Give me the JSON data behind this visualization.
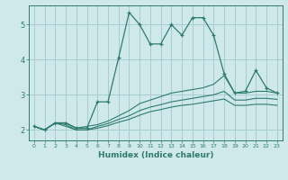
{
  "xlabel": "Humidex (Indice chaleur)",
  "bg_color": "#cfe9eb",
  "grid_color": "#a0c8cc",
  "line_color": "#2e7b6e",
  "xlim": [
    -0.5,
    23.5
  ],
  "ylim": [
    1.7,
    5.55
  ],
  "xticks": [
    0,
    1,
    2,
    3,
    4,
    5,
    6,
    7,
    8,
    9,
    10,
    11,
    12,
    13,
    14,
    15,
    16,
    17,
    18,
    19,
    20,
    21,
    22,
    23
  ],
  "yticks": [
    2,
    3,
    4,
    5
  ],
  "line1_x": [
    0,
    1,
    2,
    3,
    4,
    5,
    6,
    7,
    8,
    9,
    10,
    11,
    12,
    13,
    14,
    15,
    16,
    17,
    18,
    19,
    20,
    21,
    22,
    23
  ],
  "line1_y": [
    2.1,
    2.0,
    2.2,
    2.2,
    2.05,
    2.05,
    2.8,
    2.8,
    4.05,
    5.35,
    5.0,
    4.45,
    4.45,
    5.0,
    4.7,
    5.2,
    5.2,
    4.7,
    3.6,
    3.05,
    3.1,
    3.7,
    3.2,
    3.05
  ],
  "line2_x": [
    0,
    1,
    2,
    3,
    4,
    5,
    6,
    7,
    8,
    9,
    10,
    11,
    12,
    13,
    14,
    15,
    16,
    17,
    18,
    19,
    20,
    21,
    22,
    23
  ],
  "line2_y": [
    2.1,
    2.0,
    2.2,
    2.2,
    2.05,
    2.1,
    2.15,
    2.25,
    2.4,
    2.55,
    2.75,
    2.85,
    2.95,
    3.05,
    3.1,
    3.15,
    3.2,
    3.3,
    3.55,
    3.05,
    3.05,
    3.1,
    3.1,
    3.05
  ],
  "line3_x": [
    0,
    1,
    2,
    3,
    4,
    5,
    6,
    7,
    8,
    9,
    10,
    11,
    12,
    13,
    14,
    15,
    16,
    17,
    18,
    19,
    20,
    21,
    22,
    23
  ],
  "line3_y": [
    2.1,
    2.0,
    2.2,
    2.15,
    2.0,
    2.0,
    2.1,
    2.18,
    2.3,
    2.4,
    2.55,
    2.65,
    2.72,
    2.8,
    2.85,
    2.9,
    2.95,
    3.0,
    3.1,
    2.85,
    2.85,
    2.9,
    2.9,
    2.87
  ],
  "line4_x": [
    0,
    1,
    2,
    3,
    4,
    5,
    6,
    7,
    8,
    9,
    10,
    11,
    12,
    13,
    14,
    15,
    16,
    17,
    18,
    19,
    20,
    21,
    22,
    23
  ],
  "line4_y": [
    2.1,
    2.0,
    2.2,
    2.1,
    2.0,
    2.0,
    2.05,
    2.12,
    2.22,
    2.3,
    2.42,
    2.52,
    2.58,
    2.65,
    2.7,
    2.73,
    2.78,
    2.83,
    2.88,
    2.7,
    2.7,
    2.73,
    2.73,
    2.7
  ]
}
